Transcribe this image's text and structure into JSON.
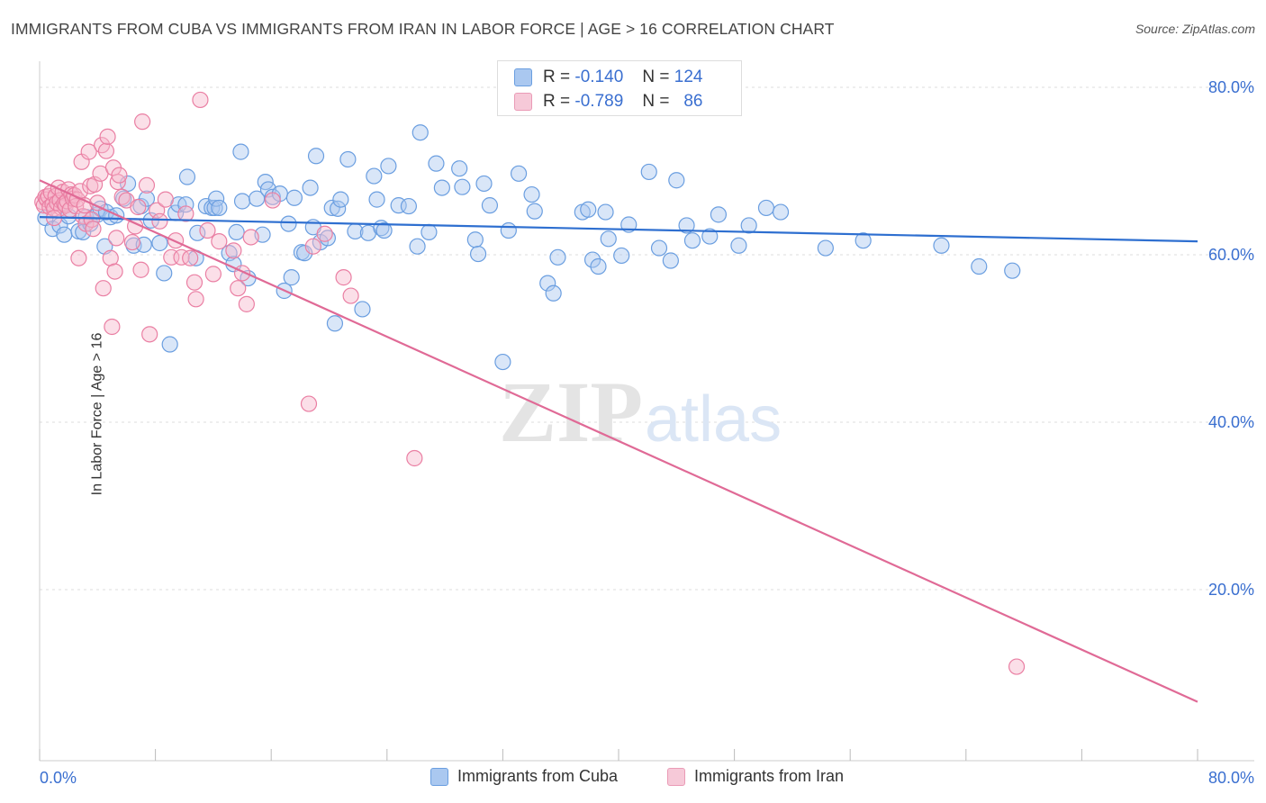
{
  "title": "IMMIGRANTS FROM CUBA VS IMMIGRANTS FROM IRAN IN LABOR FORCE | AGE > 16 CORRELATION CHART",
  "source": "Source: ZipAtlas.com",
  "watermark": {
    "zip": "ZIP",
    "atlas": "atlas"
  },
  "colors": {
    "cuba_fill": "#aac8f0",
    "cuba_stroke": "#6a9ee0",
    "cuba_line": "#2e6fd0",
    "iran_fill": "#f6b9cd",
    "iran_stroke": "#ea7fa3",
    "iran_line": "#e06a96",
    "axis_label": "#3a6fd0",
    "grid": "#dddddd"
  },
  "stats": [
    {
      "r_label": "R =",
      "r_value": "-0.140",
      "n_label": "N =",
      "n_value": "124"
    },
    {
      "r_label": "R =",
      "r_value": "-0.789",
      "n_label": "N =",
      "n_value": "86"
    }
  ],
  "chart_data": {
    "type": "scatter",
    "title": "IMMIGRANTS FROM CUBA VS IMMIGRANTS FROM IRAN IN LABOR FORCE | AGE > 16 CORRELATION CHART",
    "xlabel": "",
    "ylabel": "In Labor Force | Age > 16",
    "xlim": [
      0,
      80
    ],
    "ylim": [
      0,
      80
    ],
    "x_tick_labels": [
      "0.0%",
      "80.0%"
    ],
    "y_tick_labels": [
      "20.0%",
      "40.0%",
      "60.0%",
      "80.0%"
    ],
    "y_ticks": [
      20,
      40,
      60,
      80
    ],
    "grid": true,
    "legend_position": "bottom-center",
    "series": [
      {
        "name": "Immigrants from Cuba",
        "color": "#6a9ee0",
        "r": -0.14,
        "n": 124,
        "trend": [
          [
            0,
            64.5
          ],
          [
            80,
            61.6
          ]
        ],
        "points": [
          [
            0.4,
            64.4
          ],
          [
            0.9,
            63.1
          ],
          [
            1.4,
            63.5
          ],
          [
            1.7,
            62.4
          ],
          [
            2.0,
            64.6
          ],
          [
            2.7,
            62.8
          ],
          [
            3.0,
            62.7
          ],
          [
            3.5,
            63.7
          ],
          [
            3.2,
            64.5
          ],
          [
            4.0,
            64.8
          ],
          [
            4.2,
            65.5
          ],
          [
            4.9,
            64.5
          ],
          [
            4.6,
            65.1
          ],
          [
            5.3,
            64.7
          ],
          [
            4.5,
            61.0
          ],
          [
            5.8,
            66.7
          ],
          [
            6.1,
            68.5
          ],
          [
            6.5,
            61.1
          ],
          [
            7.2,
            61.2
          ],
          [
            7.0,
            65.8
          ],
          [
            7.4,
            66.7
          ],
          [
            7.7,
            64.1
          ],
          [
            8.6,
            57.8
          ],
          [
            8.3,
            61.4
          ],
          [
            9.0,
            49.3
          ],
          [
            9.4,
            65.0
          ],
          [
            9.6,
            66.0
          ],
          [
            10.1,
            66.0
          ],
          [
            10.2,
            69.3
          ],
          [
            10.9,
            62.6
          ],
          [
            10.8,
            59.6
          ],
          [
            11.5,
            65.8
          ],
          [
            11.9,
            65.6
          ],
          [
            12.1,
            65.6
          ],
          [
            12.2,
            66.7
          ],
          [
            12.4,
            65.6
          ],
          [
            13.1,
            60.2
          ],
          [
            13.4,
            58.9
          ],
          [
            13.6,
            62.7
          ],
          [
            13.9,
            72.3
          ],
          [
            14.0,
            66.4
          ],
          [
            14.4,
            57.2
          ],
          [
            15.0,
            66.7
          ],
          [
            15.4,
            62.4
          ],
          [
            15.6,
            68.7
          ],
          [
            15.8,
            67.8
          ],
          [
            16.1,
            66.9
          ],
          [
            16.6,
            67.3
          ],
          [
            16.9,
            55.7
          ],
          [
            17.2,
            63.7
          ],
          [
            17.4,
            57.3
          ],
          [
            17.6,
            66.8
          ],
          [
            18.1,
            60.3
          ],
          [
            18.3,
            60.2
          ],
          [
            18.7,
            68.0
          ],
          [
            18.9,
            63.3
          ],
          [
            19.1,
            71.8
          ],
          [
            19.4,
            61.5
          ],
          [
            19.9,
            62.0
          ],
          [
            20.2,
            65.6
          ],
          [
            20.4,
            51.8
          ],
          [
            20.6,
            65.5
          ],
          [
            20.8,
            66.6
          ],
          [
            21.3,
            71.4
          ],
          [
            21.8,
            62.8
          ],
          [
            22.3,
            53.5
          ],
          [
            22.7,
            62.6
          ],
          [
            23.1,
            69.4
          ],
          [
            23.3,
            66.6
          ],
          [
            23.6,
            63.2
          ],
          [
            23.8,
            62.9
          ],
          [
            24.1,
            70.6
          ],
          [
            24.8,
            65.9
          ],
          [
            25.5,
            65.8
          ],
          [
            26.1,
            61.0
          ],
          [
            26.3,
            74.6
          ],
          [
            26.9,
            62.7
          ],
          [
            27.4,
            70.9
          ],
          [
            27.8,
            68.0
          ],
          [
            29.0,
            70.3
          ],
          [
            29.2,
            68.1
          ],
          [
            30.1,
            61.8
          ],
          [
            30.3,
            60.1
          ],
          [
            30.7,
            68.5
          ],
          [
            31.1,
            65.9
          ],
          [
            32.0,
            47.2
          ],
          [
            32.4,
            62.9
          ],
          [
            33.1,
            69.7
          ],
          [
            34.0,
            67.2
          ],
          [
            34.2,
            65.2
          ],
          [
            35.1,
            56.6
          ],
          [
            35.5,
            55.4
          ],
          [
            35.8,
            59.7
          ],
          [
            37.5,
            65.1
          ],
          [
            37.9,
            65.4
          ],
          [
            38.2,
            59.4
          ],
          [
            38.6,
            58.6
          ],
          [
            39.1,
            65.1
          ],
          [
            39.3,
            61.9
          ],
          [
            40.2,
            59.9
          ],
          [
            40.7,
            63.6
          ],
          [
            42.1,
            69.9
          ],
          [
            42.8,
            60.8
          ],
          [
            43.6,
            59.3
          ],
          [
            44.0,
            68.9
          ],
          [
            44.7,
            63.5
          ],
          [
            45.1,
            61.7
          ],
          [
            46.3,
            62.2
          ],
          [
            46.9,
            64.8
          ],
          [
            48.3,
            61.1
          ],
          [
            49.0,
            63.5
          ],
          [
            50.2,
            65.6
          ],
          [
            51.2,
            65.1
          ],
          [
            54.3,
            60.8
          ],
          [
            56.9,
            61.7
          ],
          [
            62.3,
            61.1
          ],
          [
            64.9,
            58.6
          ],
          [
            67.2,
            58.1
          ]
        ]
      },
      {
        "name": "Immigrants from Iran",
        "color": "#ea7fa3",
        "r": -0.789,
        "n": 86,
        "trend": [
          [
            0,
            68.9
          ],
          [
            80,
            6.6
          ]
        ],
        "points": [
          [
            0.2,
            66.3
          ],
          [
            0.3,
            65.9
          ],
          [
            0.4,
            66.9
          ],
          [
            0.5,
            66.6
          ],
          [
            0.6,
            67.0
          ],
          [
            0.7,
            65.7
          ],
          [
            0.8,
            67.4
          ],
          [
            0.9,
            66.0
          ],
          [
            1.0,
            65.5
          ],
          [
            1.1,
            67.0
          ],
          [
            1.2,
            66.2
          ],
          [
            1.3,
            68.0
          ],
          [
            1.4,
            66.5
          ],
          [
            1.5,
            65.6
          ],
          [
            1.6,
            67.5
          ],
          [
            1.7,
            66.1
          ],
          [
            1.8,
            65.9
          ],
          [
            1.9,
            66.4
          ],
          [
            2.0,
            67.8
          ],
          [
            2.1,
            65.4
          ],
          [
            2.2,
            67.2
          ],
          [
            2.3,
            66.7
          ],
          [
            2.4,
            67.1
          ],
          [
            2.5,
            65.8
          ],
          [
            2.6,
            66.6
          ],
          [
            2.7,
            59.6
          ],
          [
            2.8,
            67.6
          ],
          [
            2.9,
            71.1
          ],
          [
            3.0,
            64.6
          ],
          [
            3.1,
            65.9
          ],
          [
            3.2,
            63.7
          ],
          [
            3.4,
            72.3
          ],
          [
            3.5,
            68.2
          ],
          [
            3.6,
            64.2
          ],
          [
            3.7,
            63.1
          ],
          [
            3.8,
            68.4
          ],
          [
            4.0,
            66.2
          ],
          [
            4.2,
            69.7
          ],
          [
            4.3,
            73.1
          ],
          [
            4.4,
            56.0
          ],
          [
            4.6,
            72.4
          ],
          [
            4.7,
            74.1
          ],
          [
            4.9,
            59.6
          ],
          [
            5.0,
            51.4
          ],
          [
            5.1,
            70.4
          ],
          [
            5.2,
            58.0
          ],
          [
            5.3,
            62.0
          ],
          [
            5.4,
            68.7
          ],
          [
            5.5,
            69.5
          ],
          [
            5.7,
            66.9
          ],
          [
            6.0,
            66.5
          ],
          [
            6.4,
            61.5
          ],
          [
            6.6,
            63.4
          ],
          [
            6.8,
            65.7
          ],
          [
            7.0,
            58.2
          ],
          [
            7.1,
            75.9
          ],
          [
            7.4,
            68.3
          ],
          [
            7.6,
            50.5
          ],
          [
            8.1,
            65.3
          ],
          [
            8.3,
            64.0
          ],
          [
            8.7,
            66.6
          ],
          [
            9.1,
            59.7
          ],
          [
            9.4,
            61.7
          ],
          [
            9.8,
            59.7
          ],
          [
            10.1,
            64.9
          ],
          [
            10.4,
            59.6
          ],
          [
            10.7,
            56.7
          ],
          [
            10.8,
            54.7
          ],
          [
            11.1,
            78.5
          ],
          [
            11.6,
            62.9
          ],
          [
            12.0,
            57.7
          ],
          [
            12.4,
            61.6
          ],
          [
            13.4,
            60.5
          ],
          [
            13.7,
            56.0
          ],
          [
            14.0,
            57.8
          ],
          [
            14.3,
            54.1
          ],
          [
            14.6,
            62.1
          ],
          [
            16.1,
            66.5
          ],
          [
            18.6,
            42.2
          ],
          [
            18.9,
            61.0
          ],
          [
            19.7,
            62.5
          ],
          [
            21.0,
            57.3
          ],
          [
            21.5,
            55.1
          ],
          [
            25.9,
            35.7
          ],
          [
            67.5,
            10.8
          ],
          [
            1.0,
            64.4
          ]
        ]
      }
    ]
  },
  "legend": [
    {
      "label": "Immigrants from Cuba"
    },
    {
      "label": "Immigrants from Iran"
    }
  ]
}
